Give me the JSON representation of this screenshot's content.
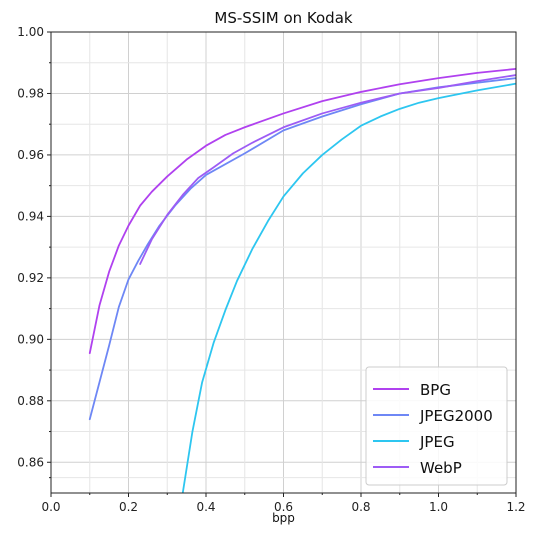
{
  "chart_data": {
    "type": "line",
    "title": "MS-SSIM on Kodak",
    "xlabel": "bpp",
    "ylabel": "",
    "xlim": [
      0.0,
      1.2
    ],
    "ylim": [
      0.85,
      1.0
    ],
    "xticks": [
      0.0,
      0.2,
      0.4,
      0.6,
      0.8,
      1.0,
      1.2
    ],
    "xtick_labels": [
      "0.0",
      "0.2",
      "0.4",
      "0.6",
      "0.8",
      "1.0",
      "1.2"
    ],
    "yticks": [
      0.86,
      0.88,
      0.9,
      0.92,
      0.94,
      0.96,
      0.98,
      1.0
    ],
    "ytick_labels": [
      "0.86",
      "0.88",
      "0.90",
      "0.92",
      "0.94",
      "0.96",
      "0.98",
      "1.00"
    ],
    "grid": true,
    "legend_position": "bottom-right",
    "series": [
      {
        "name": "BPG",
        "color": "#b041ef",
        "x": [
          0.1,
          0.125,
          0.15,
          0.175,
          0.2,
          0.23,
          0.26,
          0.3,
          0.35,
          0.4,
          0.45,
          0.5,
          0.6,
          0.7,
          0.8,
          0.9,
          1.0,
          1.1,
          1.2
        ],
        "y": [
          0.8955,
          0.911,
          0.922,
          0.9305,
          0.937,
          0.9435,
          0.948,
          0.953,
          0.9585,
          0.963,
          0.9665,
          0.969,
          0.9735,
          0.9775,
          0.9805,
          0.983,
          0.985,
          0.9867,
          0.988
        ]
      },
      {
        "name": "JPEG2000",
        "color": "#6e87f5",
        "x": [
          0.1,
          0.125,
          0.15,
          0.175,
          0.2,
          0.225,
          0.25,
          0.28,
          0.32,
          0.36,
          0.4,
          0.5,
          0.6,
          0.7,
          0.8,
          0.9,
          1.0,
          1.1,
          1.2
        ],
        "y": [
          0.874,
          0.886,
          0.898,
          0.9105,
          0.9195,
          0.9255,
          0.931,
          0.937,
          0.9435,
          0.949,
          0.9535,
          0.9605,
          0.968,
          0.9725,
          0.9765,
          0.98,
          0.982,
          0.9835,
          0.985
        ]
      },
      {
        "name": "JPEG",
        "color": "#2dc6f0",
        "x": [
          0.34,
          0.365,
          0.39,
          0.42,
          0.45,
          0.48,
          0.52,
          0.56,
          0.6,
          0.65,
          0.7,
          0.75,
          0.8,
          0.85,
          0.9,
          0.95,
          1.0,
          1.1,
          1.2
        ],
        "y": [
          0.85,
          0.87,
          0.886,
          0.899,
          0.9095,
          0.919,
          0.9295,
          0.9385,
          0.9465,
          0.954,
          0.96,
          0.965,
          0.9695,
          0.9725,
          0.975,
          0.977,
          0.9785,
          0.981,
          0.9832
        ]
      },
      {
        "name": "WebP",
        "color": "#9d5cf5",
        "x": [
          0.23,
          0.26,
          0.3,
          0.34,
          0.38,
          0.42,
          0.47,
          0.52,
          0.6,
          0.7,
          0.8,
          0.9,
          1.0,
          1.1,
          1.2
        ],
        "y": [
          0.9245,
          0.9325,
          0.9405,
          0.947,
          0.9525,
          0.956,
          0.9605,
          0.964,
          0.969,
          0.9735,
          0.977,
          0.98,
          0.9818,
          0.984,
          0.986
        ]
      }
    ]
  }
}
